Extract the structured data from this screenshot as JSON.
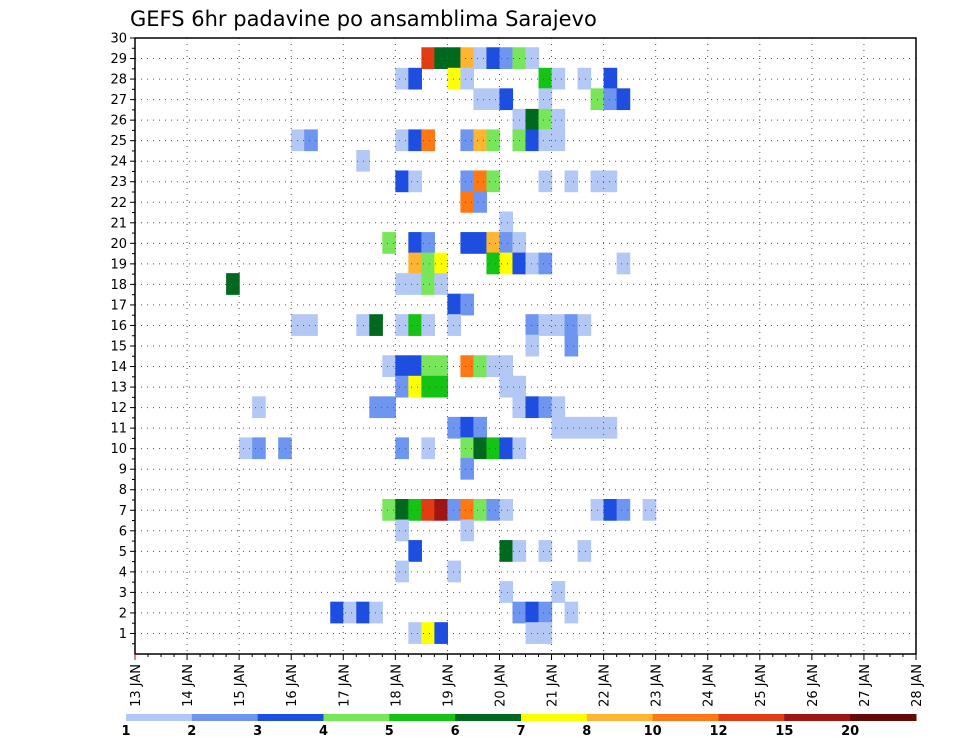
{
  "chart_data": {
    "type": "heatmap",
    "title": "GEFS 6hr padavine po ansamblima Sarajevo",
    "x_start": "13 JAN 00Z",
    "x_step_hours": 6,
    "x_tick_labels": [
      "13 JAN",
      "14 JAN",
      "15 JAN",
      "16 JAN",
      "17 JAN",
      "18 JAN",
      "19 JAN",
      "20 JAN",
      "21 JAN",
      "22 JAN",
      "23 JAN",
      "24 JAN",
      "25 JAN",
      "26 JAN",
      "27 JAN",
      "28 JAN"
    ],
    "y_tick_labels": [
      "1",
      "2",
      "3",
      "4",
      "5",
      "6",
      "7",
      "8",
      "9",
      "10",
      "11",
      "12",
      "13",
      "14",
      "15",
      "16",
      "17",
      "18",
      "19",
      "20",
      "21",
      "22",
      "23",
      "24",
      "25",
      "26",
      "27",
      "28",
      "29",
      "30"
    ],
    "ylim": [
      0,
      30
    ],
    "grid": true,
    "legend_placement": "bottom",
    "colorbar": {
      "tick_labels": [
        "1",
        "2",
        "3",
        "4",
        "5",
        "6",
        "7",
        "8",
        "10",
        "12",
        "15",
        "20"
      ],
      "colors": [
        "#b4c8f5",
        "#6e96f0",
        "#1e4ee0",
        "#78e65a",
        "#14c314",
        "#00691e",
        "#ffff00",
        "#ffb432",
        "#ff7814",
        "#e13c14",
        "#a01414",
        "#640a0a"
      ]
    },
    "cells": [
      [
        29,
        22,
        10
      ],
      [
        29,
        23,
        6
      ],
      [
        29,
        24,
        6
      ],
      [
        29,
        25,
        8
      ],
      [
        29,
        26,
        1
      ],
      [
        29,
        27,
        3
      ],
      [
        29,
        28,
        2
      ],
      [
        29,
        29,
        4
      ],
      [
        29,
        30,
        1
      ],
      [
        28,
        20,
        1
      ],
      [
        28,
        21,
        3
      ],
      [
        28,
        24,
        7
      ],
      [
        28,
        25,
        1
      ],
      [
        28,
        31,
        5
      ],
      [
        28,
        32,
        1
      ],
      [
        28,
        34,
        1
      ],
      [
        28,
        36,
        3
      ],
      [
        27,
        26,
        1
      ],
      [
        27,
        27,
        1
      ],
      [
        27,
        28,
        3
      ],
      [
        27,
        31,
        1
      ],
      [
        27,
        35,
        4
      ],
      [
        27,
        36,
        2
      ],
      [
        27,
        37,
        3
      ],
      [
        26,
        29,
        1
      ],
      [
        26,
        30,
        6
      ],
      [
        26,
        31,
        4
      ],
      [
        26,
        32,
        1
      ],
      [
        25,
        12,
        1
      ],
      [
        25,
        13,
        2
      ],
      [
        25,
        20,
        1
      ],
      [
        25,
        21,
        3
      ],
      [
        25,
        22,
        9
      ],
      [
        25,
        25,
        2
      ],
      [
        25,
        26,
        8
      ],
      [
        25,
        27,
        4
      ],
      [
        25,
        29,
        4
      ],
      [
        25,
        30,
        3
      ],
      [
        25,
        31,
        1
      ],
      [
        25,
        32,
        1
      ],
      [
        24,
        17,
        1
      ],
      [
        23,
        20,
        3
      ],
      [
        23,
        21,
        1
      ],
      [
        23,
        25,
        2
      ],
      [
        23,
        26,
        9
      ],
      [
        23,
        27,
        4
      ],
      [
        23,
        31,
        1
      ],
      [
        23,
        33,
        1
      ],
      [
        23,
        35,
        1
      ],
      [
        23,
        36,
        1
      ],
      [
        22,
        25,
        9
      ],
      [
        22,
        26,
        2
      ],
      [
        21,
        28,
        1
      ],
      [
        20,
        19,
        4
      ],
      [
        20,
        21,
        3
      ],
      [
        20,
        22,
        2
      ],
      [
        20,
        25,
        3
      ],
      [
        20,
        26,
        3
      ],
      [
        20,
        27,
        8
      ],
      [
        20,
        28,
        2
      ],
      [
        20,
        29,
        1
      ],
      [
        19,
        21,
        8
      ],
      [
        19,
        22,
        4
      ],
      [
        19,
        23,
        7
      ],
      [
        19,
        27,
        5
      ],
      [
        19,
        28,
        7
      ],
      [
        19,
        29,
        3
      ],
      [
        19,
        30,
        1
      ],
      [
        19,
        31,
        2
      ],
      [
        19,
        37,
        1
      ],
      [
        18,
        7,
        6
      ],
      [
        18,
        20,
        1
      ],
      [
        18,
        21,
        1
      ],
      [
        18,
        22,
        4
      ],
      [
        18,
        23,
        1
      ],
      [
        17,
        24,
        3
      ],
      [
        17,
        25,
        2
      ],
      [
        16,
        12,
        1
      ],
      [
        16,
        13,
        1
      ],
      [
        16,
        17,
        1
      ],
      [
        16,
        18,
        6
      ],
      [
        16,
        20,
        1
      ],
      [
        16,
        21,
        5
      ],
      [
        16,
        22,
        1
      ],
      [
        16,
        24,
        1
      ],
      [
        16,
        30,
        2
      ],
      [
        16,
        31,
        1
      ],
      [
        16,
        32,
        1
      ],
      [
        16,
        33,
        2
      ],
      [
        16,
        34,
        1
      ],
      [
        15,
        30,
        1
      ],
      [
        15,
        33,
        2
      ],
      [
        14,
        19,
        1
      ],
      [
        14,
        20,
        3
      ],
      [
        14,
        21,
        3
      ],
      [
        14,
        22,
        4
      ],
      [
        14,
        23,
        4
      ],
      [
        14,
        25,
        9
      ],
      [
        14,
        26,
        4
      ],
      [
        14,
        27,
        1
      ],
      [
        14,
        28,
        1
      ],
      [
        13,
        20,
        2
      ],
      [
        13,
        21,
        7
      ],
      [
        13,
        22,
        5
      ],
      [
        13,
        23,
        5
      ],
      [
        13,
        28,
        1
      ],
      [
        13,
        29,
        1
      ],
      [
        12,
        9,
        1
      ],
      [
        12,
        18,
        2
      ],
      [
        12,
        19,
        2
      ],
      [
        12,
        29,
        1
      ],
      [
        12,
        30,
        3
      ],
      [
        12,
        31,
        2
      ],
      [
        12,
        32,
        1
      ],
      [
        11,
        24,
        2
      ],
      [
        11,
        25,
        3
      ],
      [
        11,
        26,
        2
      ],
      [
        11,
        32,
        1
      ],
      [
        11,
        33,
        1
      ],
      [
        11,
        34,
        1
      ],
      [
        11,
        35,
        1
      ],
      [
        11,
        36,
        1
      ],
      [
        10,
        8,
        1
      ],
      [
        10,
        9,
        2
      ],
      [
        10,
        11,
        2
      ],
      [
        10,
        20,
        2
      ],
      [
        10,
        22,
        1
      ],
      [
        10,
        25,
        4
      ],
      [
        10,
        26,
        6
      ],
      [
        10,
        27,
        5
      ],
      [
        10,
        28,
        3
      ],
      [
        10,
        29,
        1
      ],
      [
        9,
        25,
        2
      ],
      [
        7,
        19,
        4
      ],
      [
        7,
        20,
        6
      ],
      [
        7,
        21,
        5
      ],
      [
        7,
        22,
        10
      ],
      [
        7,
        23,
        11
      ],
      [
        7,
        24,
        2
      ],
      [
        7,
        25,
        9
      ],
      [
        7,
        26,
        4
      ],
      [
        7,
        27,
        2
      ],
      [
        7,
        28,
        1
      ],
      [
        7,
        35,
        1
      ],
      [
        7,
        36,
        3
      ],
      [
        7,
        37,
        2
      ],
      [
        7,
        39,
        1
      ],
      [
        6,
        20,
        1
      ],
      [
        6,
        25,
        1
      ],
      [
        5,
        21,
        3
      ],
      [
        5,
        28,
        6
      ],
      [
        5,
        29,
        1
      ],
      [
        5,
        31,
        1
      ],
      [
        5,
        34,
        1
      ],
      [
        4,
        20,
        1
      ],
      [
        4,
        24,
        1
      ],
      [
        3,
        28,
        1
      ],
      [
        3,
        32,
        1
      ],
      [
        2,
        15,
        3
      ],
      [
        2,
        16,
        1
      ],
      [
        2,
        17,
        3
      ],
      [
        2,
        18,
        1
      ],
      [
        2,
        29,
        2
      ],
      [
        2,
        30,
        3
      ],
      [
        2,
        31,
        2
      ],
      [
        2,
        33,
        1
      ],
      [
        1,
        21,
        1
      ],
      [
        1,
        22,
        7
      ],
      [
        1,
        23,
        3
      ],
      [
        1,
        30,
        1
      ],
      [
        1,
        31,
        1
      ]
    ]
  }
}
